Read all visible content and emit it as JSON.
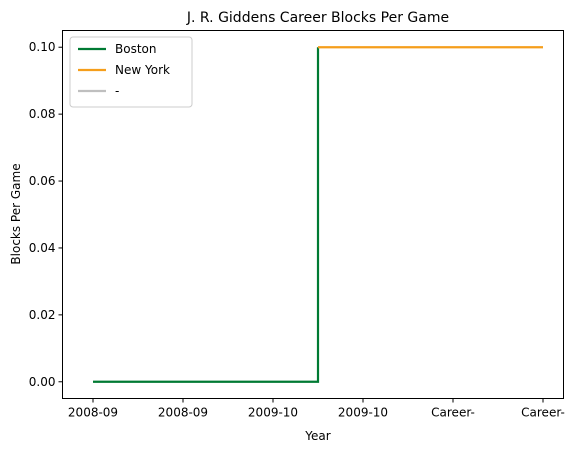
{
  "chart_data": {
    "type": "line",
    "title": "J. R. Giddens Career Blocks Per Game",
    "xlabel": "Year",
    "ylabel": "Blocks Per Game",
    "x_tick_labels": [
      "2008-09",
      "2008-09",
      "2009-10",
      "2009-10",
      "Career-",
      "Career-"
    ],
    "ylim": [
      -0.005,
      0.105
    ],
    "y_ticks": [
      0.0,
      0.02,
      0.04,
      0.06,
      0.08,
      0.1
    ],
    "y_tick_labels": [
      "0.00",
      "0.02",
      "0.04",
      "0.06",
      "0.08",
      "0.10"
    ],
    "grid": false,
    "legend_position": "top-left",
    "step": "post",
    "series": [
      {
        "name": "Boston",
        "color": "#007A33",
        "x": [
          0,
          1,
          2,
          2.5
        ],
        "values": [
          0.0,
          0.0,
          0.0,
          0.1
        ]
      },
      {
        "name": "New York",
        "color": "#F59E1B",
        "x": [
          2.5,
          3,
          4,
          5
        ],
        "values": [
          0.1,
          0.1,
          0.1,
          0.1
        ]
      },
      {
        "name": "-",
        "color": "#BFBFBF",
        "x": [],
        "values": []
      }
    ]
  }
}
